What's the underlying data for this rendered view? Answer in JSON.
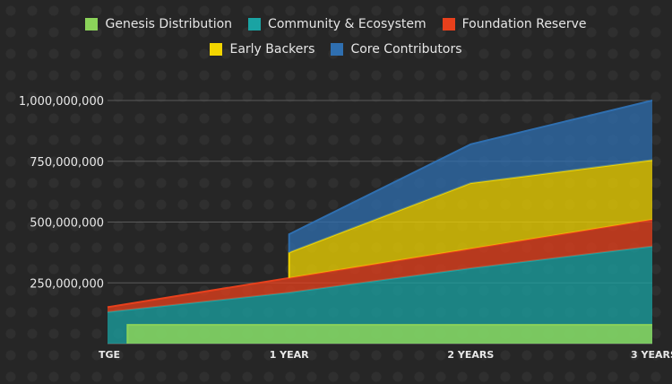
{
  "chart_data": {
    "type": "area",
    "stacked": true,
    "title": "",
    "xlabel": "",
    "ylabel": "",
    "x": [
      "TGE",
      "1 YEAR",
      "2 YEARS",
      "3 YEARS"
    ],
    "x_positions_years": [
      0,
      1,
      2,
      3
    ],
    "ylim": [
      0,
      1000000000
    ],
    "y_ticks": [
      250000000,
      500000000,
      750000000,
      1000000000
    ],
    "y_tick_labels": [
      "250,000,000",
      "500,000,000",
      "750,000,000",
      "1,000,000,000"
    ],
    "grid": "horizontal",
    "legend_position": "top",
    "series": [
      {
        "name": "Genesis Distribution",
        "color": "#8bd35a",
        "points": [
          [
            0.11,
            0
          ],
          [
            0.11,
            77000000
          ],
          [
            3,
            77000000
          ]
        ]
      },
      {
        "name": "Community & Ecosystem",
        "color": "#1aa3a3",
        "points": [
          [
            0,
            130000000
          ],
          [
            1,
            210000000
          ],
          [
            2,
            310000000
          ],
          [
            3,
            400000000
          ]
        ]
      },
      {
        "name": "Foundation Reserve",
        "color": "#e8401c",
        "points": [
          [
            0,
            150000000
          ],
          [
            1,
            270000000
          ],
          [
            2,
            390000000
          ],
          [
            3,
            510000000
          ]
        ]
      },
      {
        "name": "Early Backers",
        "color": "#f2d500",
        "points": [
          [
            1,
            270000000
          ],
          [
            1,
            375000000
          ],
          [
            2,
            660000000
          ],
          [
            3,
            755000000
          ]
        ]
      },
      {
        "name": "Core Contributors",
        "color": "#2f6fb0",
        "points": [
          [
            1,
            375000000
          ],
          [
            1,
            450000000
          ],
          [
            2,
            820000000
          ],
          [
            3,
            1000000000
          ]
        ]
      }
    ]
  }
}
